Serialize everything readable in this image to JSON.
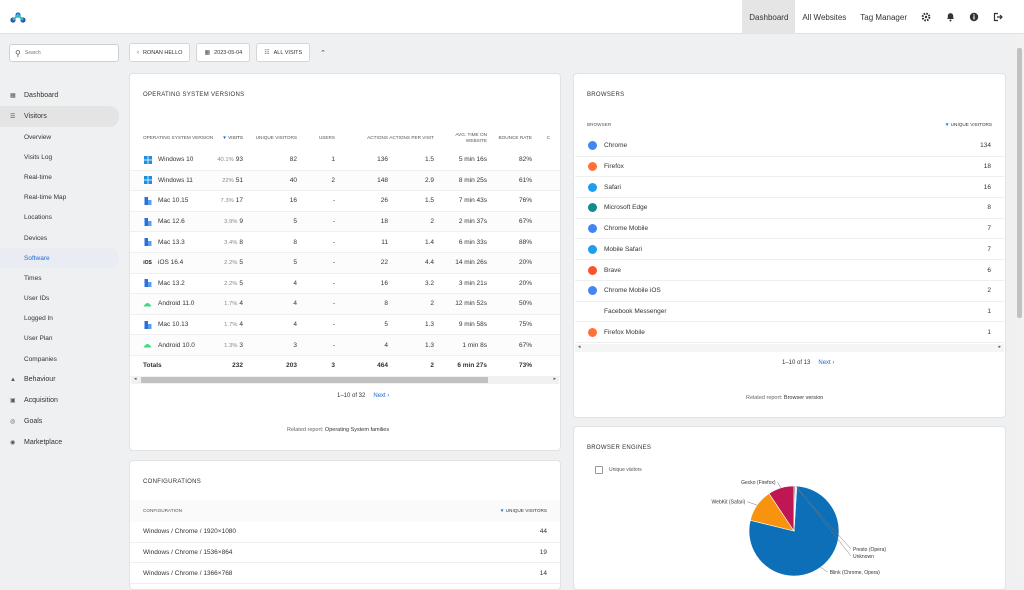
{
  "header": {
    "nav": [
      "Dashboard",
      "All Websites",
      "Tag Manager"
    ],
    "icons": [
      "gear-icon",
      "bell-icon",
      "info-icon",
      "logout-icon"
    ]
  },
  "search": {
    "placeholder": "Search"
  },
  "menu": {
    "dashboard": "Dashboard",
    "visitors": "Visitors",
    "visitors_sub": [
      "Overview",
      "Visits Log",
      "Real-time",
      "Real-time Map",
      "Locations",
      "Devices",
      "Software",
      "Times",
      "User IDs",
      "Logged In",
      "User Plan",
      "Companies"
    ],
    "active_sub": "Software",
    "behaviour": "Behaviour",
    "acquisition": "Acquisition",
    "goals": "Goals",
    "marketplace": "Marketplace"
  },
  "segments": {
    "user": "RONAN HELLO",
    "date": "2023-05-04",
    "segment": "ALL VISITS"
  },
  "os_card": {
    "title": "OPERATING SYSTEM VERSIONS",
    "headers": {
      "label": "OPERATING SYSTEM VERSION",
      "visits": "VISITS",
      "unique": "UNIQUE VISITORS",
      "users": "USERS",
      "actions": "ACTIONS",
      "apv": "ACTIONS PER VISIT",
      "avg": "AVG. TIME ON WEBSITE",
      "bounce": "BOUNCE RATE",
      "conv": "C"
    },
    "rows": [
      {
        "name": "Windows 10",
        "icon": "windows-icon",
        "pct": "40.1%",
        "visits": "93",
        "unique": "82",
        "users": "1",
        "actions": "136",
        "apv": "1.5",
        "avg": "5 min 16s",
        "bounce": "82%"
      },
      {
        "name": "Windows 11",
        "icon": "windows-icon",
        "pct": "22%",
        "visits": "51",
        "unique": "40",
        "users": "2",
        "actions": "148",
        "apv": "2.9",
        "avg": "8 min 25s",
        "bounce": "61%"
      },
      {
        "name": "Mac 10.15",
        "icon": "mac-icon",
        "pct": "7.3%",
        "visits": "17",
        "unique": "16",
        "users": "-",
        "actions": "26",
        "apv": "1.5",
        "avg": "7 min 43s",
        "bounce": "76%"
      },
      {
        "name": "Mac 12.6",
        "icon": "mac-icon",
        "pct": "3.9%",
        "visits": "9",
        "unique": "5",
        "users": "-",
        "actions": "18",
        "apv": "2",
        "avg": "2 min 37s",
        "bounce": "67%"
      },
      {
        "name": "Mac 13.3",
        "icon": "mac-icon",
        "pct": "3.4%",
        "visits": "8",
        "unique": "8",
        "users": "-",
        "actions": "11",
        "apv": "1.4",
        "avg": "6 min 33s",
        "bounce": "88%"
      },
      {
        "name": "iOS 16.4",
        "icon": "ios-icon",
        "pct": "2.2%",
        "visits": "5",
        "unique": "5",
        "users": "-",
        "actions": "22",
        "apv": "4.4",
        "avg": "14 min 26s",
        "bounce": "20%"
      },
      {
        "name": "Mac 13.2",
        "icon": "mac-icon",
        "pct": "2.2%",
        "visits": "5",
        "unique": "4",
        "users": "-",
        "actions": "16",
        "apv": "3.2",
        "avg": "3 min 21s",
        "bounce": "20%"
      },
      {
        "name": "Android 11.0",
        "icon": "android-icon",
        "pct": "1.7%",
        "visits": "4",
        "unique": "4",
        "users": "-",
        "actions": "8",
        "apv": "2",
        "avg": "12 min 52s",
        "bounce": "50%"
      },
      {
        "name": "Mac 10.13",
        "icon": "mac-icon",
        "pct": "1.7%",
        "visits": "4",
        "unique": "4",
        "users": "-",
        "actions": "5",
        "apv": "1.3",
        "avg": "9 min 58s",
        "bounce": "75%"
      },
      {
        "name": "Android 10.0",
        "icon": "android-icon",
        "pct": "1.3%",
        "visits": "3",
        "unique": "3",
        "users": "-",
        "actions": "4",
        "apv": "1.3",
        "avg": "1 min 8s",
        "bounce": "67%"
      }
    ],
    "totals": {
      "name": "Totals",
      "visits": "232",
      "unique": "203",
      "users": "3",
      "actions": "464",
      "apv": "2",
      "avg": "6 min 27s",
      "bounce": "73%"
    },
    "pager": "1–10 of 32",
    "next": "Next ›",
    "related_prefix": "Related report:",
    "related_link": "Operating System families"
  },
  "config_card": {
    "title": "CONFIGURATIONS",
    "col_label": "CONFIGURATION",
    "col_value": "UNIQUE VISITORS",
    "rows": [
      {
        "label": "Windows / Chrome / 1920×1080",
        "value": "44"
      },
      {
        "label": "Windows / Chrome / 1536×864",
        "value": "19"
      },
      {
        "label": "Windows / Chrome / 1366×768",
        "value": "14"
      }
    ]
  },
  "browsers_card": {
    "title": "BROWSERS",
    "col_label": "BROWSER",
    "col_value": "UNIQUE VISITORS",
    "rows": [
      {
        "name": "Chrome",
        "value": "134",
        "color": "#4285f4"
      },
      {
        "name": "Firefox",
        "value": "18",
        "color": "#ff7139"
      },
      {
        "name": "Safari",
        "value": "16",
        "color": "#1e9ef0"
      },
      {
        "name": "Microsoft Edge",
        "value": "8",
        "color": "#0f8c8c"
      },
      {
        "name": "Chrome Mobile",
        "value": "7",
        "color": "#4285f4"
      },
      {
        "name": "Mobile Safari",
        "value": "7",
        "color": "#1e9ef0"
      },
      {
        "name": "Brave",
        "value": "6",
        "color": "#fb542b"
      },
      {
        "name": "Chrome Mobile iOS",
        "value": "2",
        "color": "#4285f4"
      },
      {
        "name": "Facebook Messenger",
        "value": "1",
        "color": ""
      },
      {
        "name": "Firefox Mobile",
        "value": "1",
        "color": "#ff7139"
      }
    ],
    "pager": "1–10 of 13",
    "next": "Next ›",
    "related_prefix": "Related report:",
    "related_link": "Browser version"
  },
  "engines_card": {
    "title": "BROWSER ENGINES",
    "legend": "Unique visitors"
  },
  "chart_data": {
    "type": "pie",
    "categories": [
      "Blink (Chrome, Opera)",
      "WebKit (Safari)",
      "Gecko (Firefox)",
      "Presto (Opera)",
      "Unknown"
    ],
    "values": [
      158,
      24,
      19,
      1,
      1
    ],
    "colors": [
      "#0d6fb8",
      "#f7930f",
      "#bf1753",
      "#7d7d7d",
      "#cccccc"
    ],
    "legend": "Unique visitors"
  }
}
